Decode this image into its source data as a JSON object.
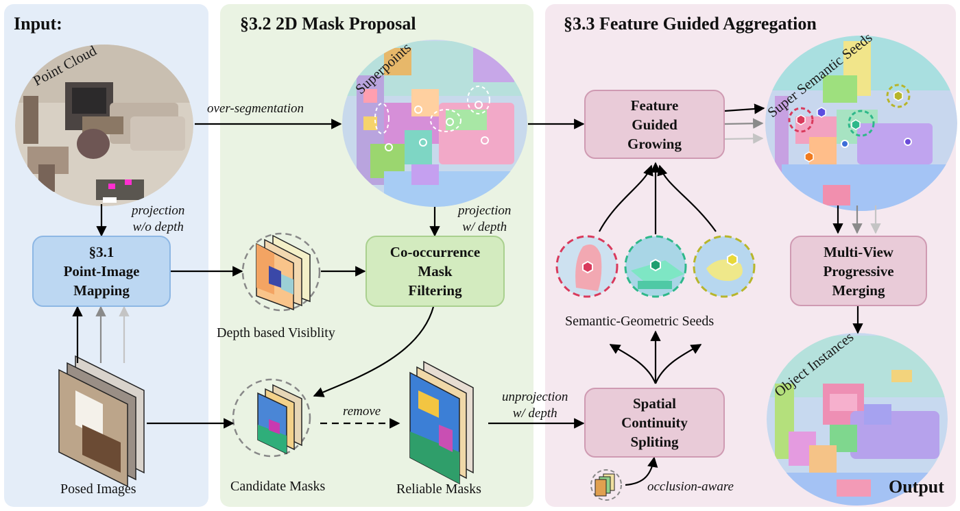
{
  "sections": {
    "input": "Input:",
    "mask_proposal": "§3.2 2D Mask Proposal",
    "aggregation": "§3.3 Feature Guided Aggregation"
  },
  "nodes": {
    "mapping": [
      "§3.1",
      "Point-Image",
      "Mapping"
    ],
    "cooccurrence": [
      "Co-occurrence",
      "Mask",
      "Filtering"
    ],
    "growing": [
      "Feature",
      "Guided",
      "Growing"
    ],
    "merging": [
      "Multi-View",
      "Progressive",
      "Merging"
    ],
    "splitting": [
      "Spatial",
      "Continuity",
      "Spliting"
    ]
  },
  "images": {
    "point_cloud": "Point Cloud",
    "superpoints": "Superpoints",
    "super_semantic_seeds": "Super Semantic Seeds",
    "object_instances": "Object Instances"
  },
  "labels": {
    "depth_visibility": "Depth based Visiblity",
    "semantic_geometric_seeds": "Semantic-Geometric Seeds",
    "posed_images": "Posed Images",
    "candidate_masks": "Candidate Masks",
    "reliable_masks": "Reliable Masks",
    "output": "Output"
  },
  "edge_labels": {
    "over_segmentation": "over-segmentation",
    "projection_wo_depth": [
      "projection",
      "w/o depth"
    ],
    "projection_w_depth": [
      "projection",
      "w/ depth"
    ],
    "remove": "remove",
    "unprojection": [
      "unprojection",
      "w/ depth"
    ],
    "occlusion_aware": "occlusion-aware"
  },
  "colors": {
    "seed_red": "#d93a5c",
    "seed_teal": "#2eb88a",
    "seed_olive": "#b7b52a"
  }
}
